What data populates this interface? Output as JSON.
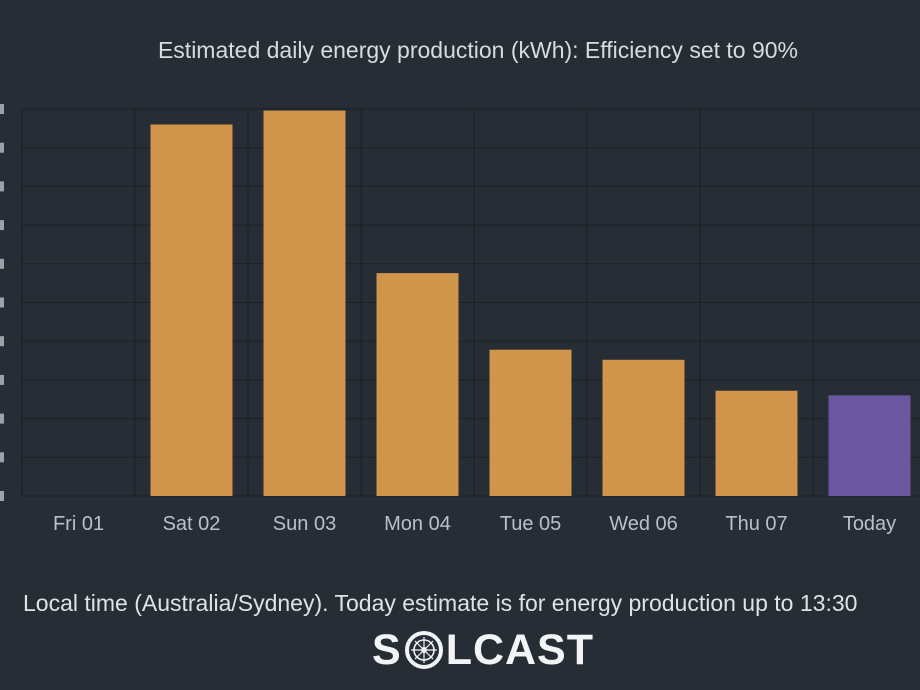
{
  "chart_data": {
    "type": "bar",
    "title": "Estimated daily energy production (kWh): Efficiency set to 90%",
    "xlabel": "",
    "ylabel": "",
    "categories": [
      "Fri 01",
      "Sat 02",
      "Sun 03",
      "Mon 04",
      "Tue 05",
      "Wed 06",
      "Thu 07",
      "Today"
    ],
    "values": [
      0,
      48.0,
      49.8,
      28.8,
      18.9,
      17.6,
      13.6,
      13.0
    ],
    "ylim": [
      0,
      50
    ],
    "grid": true,
    "highlight_category": "Today",
    "colors": {
      "bar": "#d0944a",
      "bar_highlight": "#6b57a0",
      "background": "#262d35",
      "grid": "#1b2027",
      "text": "#d7dce2",
      "muted_text": "#b9c0c8"
    }
  },
  "footer": {
    "note": "Local time (Australia/Sydney). Today estimate is for energy production up to 13:30"
  },
  "brand": {
    "name": "SOLCAST",
    "icon": "solcast-globe-logo"
  }
}
